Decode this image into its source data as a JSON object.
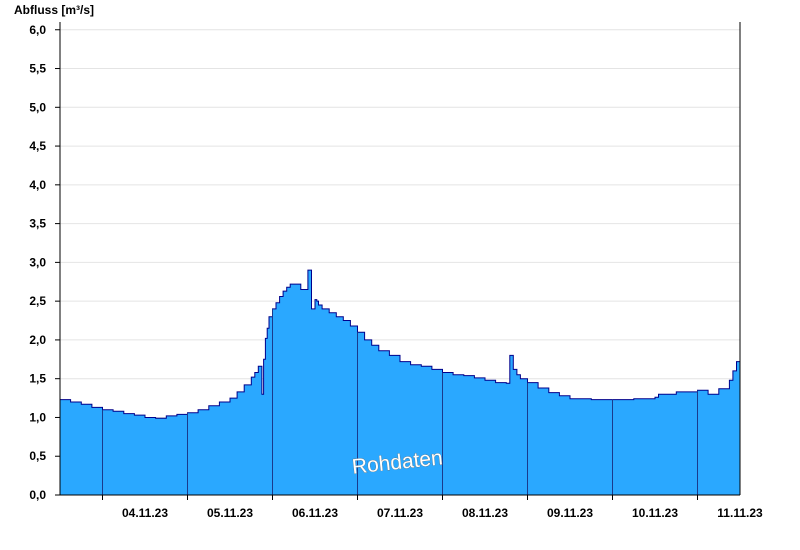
{
  "chart_data": {
    "type": "area",
    "title": "",
    "ylabel": "Abfluss [m³/s]",
    "xlabel": "",
    "ylim": [
      0,
      6.1
    ],
    "xlim": [
      "03.11.23 12:00",
      "11.11.23 12:00"
    ],
    "grid": "horizontal-only",
    "yticks": [
      "0,0",
      "0,5",
      "1,0",
      "1,5",
      "2,0",
      "2,5",
      "3,0",
      "3,5",
      "4,0",
      "4,5",
      "5,0",
      "5,5",
      "6,0"
    ],
    "xticks": [
      "04.11.23",
      "05.11.23",
      "06.11.23",
      "07.11.23",
      "08.11.23",
      "09.11.23",
      "10.11.23",
      "11.11.23"
    ],
    "watermark": "Rohdaten",
    "colors": {
      "fill": "#2aa8ff",
      "line": "#00008b",
      "grid": "#e4e4e4",
      "divider": "#1a3a8c"
    },
    "series": [
      {
        "x": [
          "03.11.23 12:00",
          "03.11.23 15:00",
          "03.11.23 18:00",
          "03.11.23 21:00",
          "04.11.23 00:00",
          "04.11.23 03:00",
          "04.11.23 06:00",
          "04.11.23 09:00",
          "04.11.23 12:00",
          "04.11.23 15:00",
          "04.11.23 18:00",
          "04.11.23 21:00",
          "05.11.23 00:00",
          "05.11.23 03:00",
          "05.11.23 06:00",
          "05.11.23 09:00",
          "05.11.23 12:00",
          "05.11.23 14:00",
          "05.11.23 16:00",
          "05.11.23 18:00",
          "05.11.23 19:00",
          "05.11.23 20:00",
          "05.11.23 21:00",
          "05.11.23 21:30",
          "05.11.23 22:00",
          "05.11.23 22:30",
          "05.11.23 23:00",
          "06.11.23 00:00",
          "06.11.23 01:00",
          "06.11.23 02:00",
          "06.11.23 03:00",
          "06.11.23 04:00",
          "06.11.23 05:00",
          "06.11.23 06:00",
          "06.11.23 08:00",
          "06.11.23 10:00",
          "06.11.23 11:00",
          "06.11.23 12:00",
          "06.11.23 12:30",
          "06.11.23 13:00",
          "06.11.23 14:00",
          "06.11.23 16:00",
          "06.11.23 18:00",
          "06.11.23 20:00",
          "06.11.23 22:00",
          "07.11.23 00:00",
          "07.11.23 02:00",
          "07.11.23 04:00",
          "07.11.23 06:00",
          "07.11.23 09:00",
          "07.11.23 12:00",
          "07.11.23 15:00",
          "07.11.23 18:00",
          "07.11.23 21:00",
          "08.11.23 00:00",
          "08.11.23 03:00",
          "08.11.23 06:00",
          "08.11.23 09:00",
          "08.11.23 12:00",
          "08.11.23 15:00",
          "08.11.23 18:00",
          "08.11.23 19:00",
          "08.11.23 20:00",
          "08.11.23 21:00",
          "08.11.23 22:00",
          "09.11.23 00:00",
          "09.11.23 03:00",
          "09.11.23 06:00",
          "09.11.23 09:00",
          "09.11.23 12:00",
          "09.11.23 18:00",
          "10.11.23 00:00",
          "10.11.23 06:00",
          "10.11.23 12:00",
          "10.11.23 13:00",
          "10.11.23 18:00",
          "11.11.23 00:00",
          "11.11.23 03:00",
          "11.11.23 06:00",
          "11.11.23 09:00",
          "11.11.23 10:00",
          "11.11.23 11:00",
          "11.11.23 12:00"
        ],
        "y": [
          1.23,
          1.2,
          1.17,
          1.13,
          1.1,
          1.08,
          1.05,
          1.03,
          1.0,
          0.99,
          1.02,
          1.04,
          1.06,
          1.1,
          1.15,
          1.2,
          1.25,
          1.33,
          1.42,
          1.52,
          1.58,
          1.66,
          1.3,
          1.75,
          2.02,
          2.15,
          2.3,
          2.4,
          2.48,
          2.56,
          2.63,
          2.68,
          2.72,
          2.72,
          2.65,
          2.9,
          2.4,
          2.52,
          2.5,
          2.45,
          2.4,
          2.35,
          2.3,
          2.25,
          2.18,
          2.1,
          2.0,
          1.93,
          1.86,
          1.8,
          1.72,
          1.68,
          1.66,
          1.62,
          1.58,
          1.55,
          1.54,
          1.51,
          1.48,
          1.45,
          1.44,
          1.8,
          1.62,
          1.55,
          1.5,
          1.45,
          1.38,
          1.32,
          1.28,
          1.24,
          1.23,
          1.23,
          1.24,
          1.26,
          1.3,
          1.33,
          1.35,
          1.3,
          1.37,
          1.48,
          1.6,
          1.72,
          1.8
        ]
      }
    ]
  }
}
